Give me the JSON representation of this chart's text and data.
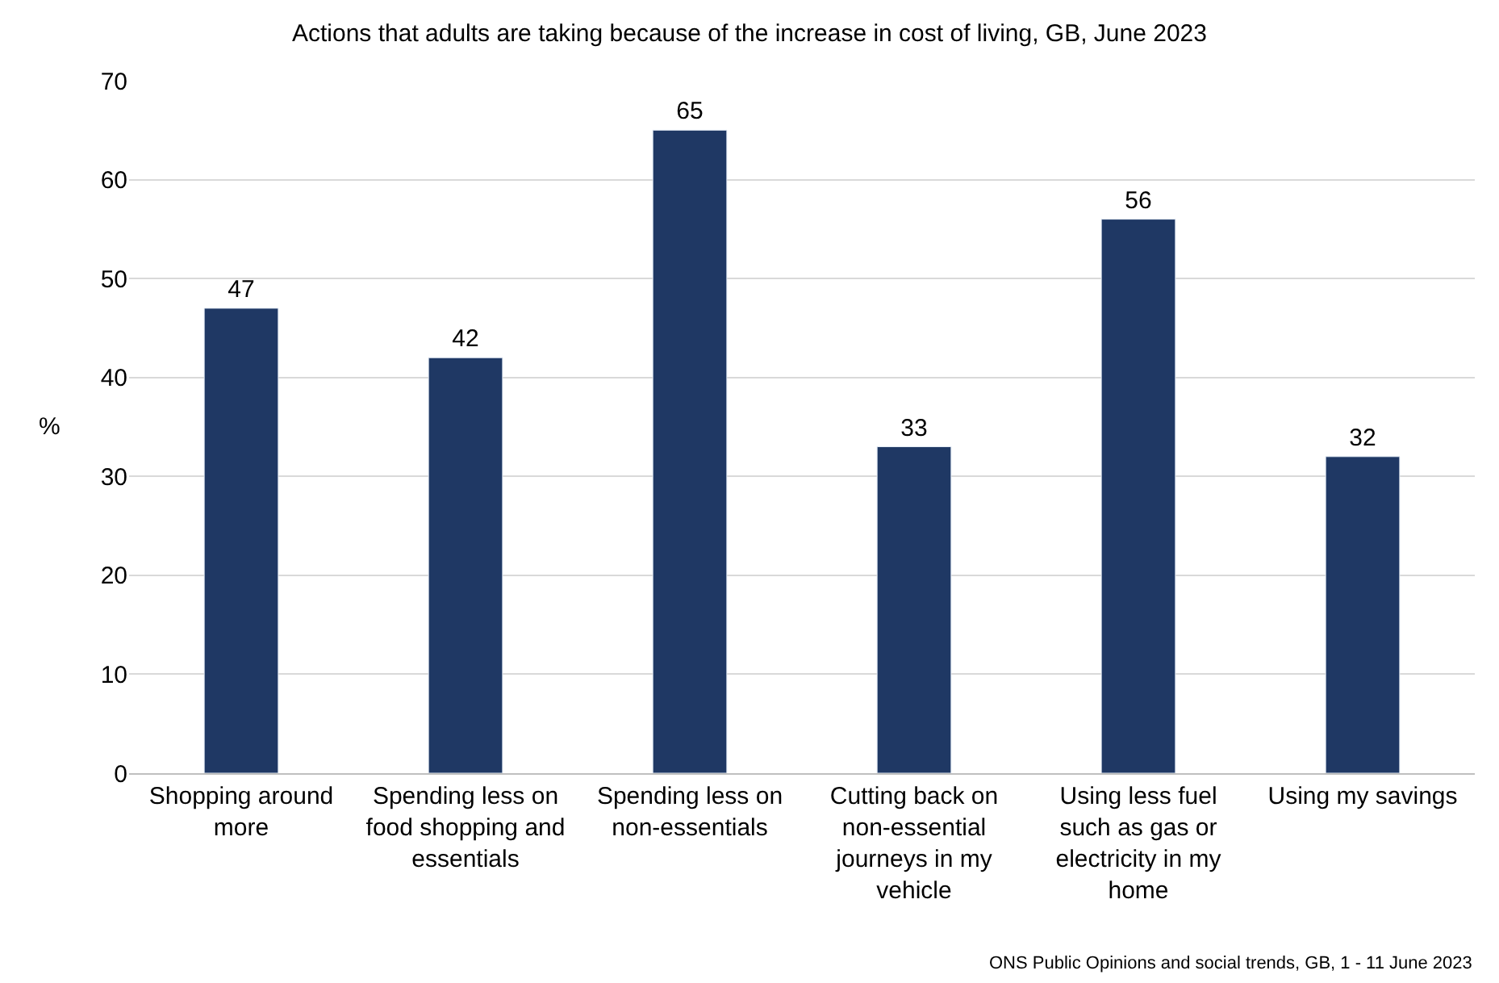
{
  "chart_data": {
    "type": "bar",
    "title": "Actions that adults are taking because of the increase in cost of living, GB, June 2023",
    "ylabel": "%",
    "categories": [
      "Shopping around more",
      "Spending less on food shopping and essentials",
      "Spending less on non-essentials",
      "Cutting back on non-essential journeys in my vehicle",
      "Using less fuel such as gas or electricity in my home",
      "Using my savings"
    ],
    "values": [
      47,
      42,
      65,
      33,
      56,
      32
    ],
    "color": "#1f3864",
    "data_labels": true,
    "ylim": [
      0,
      70
    ],
    "yticks": [
      0,
      10,
      20,
      30,
      40,
      50,
      60,
      70
    ],
    "grid": "y",
    "legend": false,
    "annotations": [
      "ONS Public Opinions and social trends, GB, 1 - 11 June 2023"
    ]
  }
}
